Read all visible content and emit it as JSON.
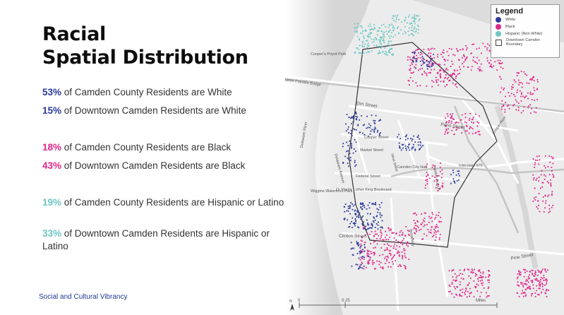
{
  "title_line1": "Racial",
  "title_line2": "Spatial Distribution",
  "colors": {
    "white": "#2b3a9b",
    "black": "#e0278a",
    "hispanic": "#6cc7c4"
  },
  "stats": [
    {
      "pct": "53%",
      "text": " of Camden County Residents are White",
      "color": "#2b3a9b"
    },
    {
      "pct": "15%",
      "text": " of Downtown Camden Residents are White",
      "color": "#2b3a9b"
    },
    {
      "pct": "18%",
      "text": " of Camden County Residents are Black",
      "color": "#e0278a"
    },
    {
      "pct": "43%",
      "text": " of Downtown Camden Residents are Black",
      "color": "#e0278a"
    },
    {
      "pct": "19%",
      "text": " of Camden County Residents are Hispanic or Latino",
      "color": "#6cc7c4"
    },
    {
      "pct": "33%",
      "text": " of Downtown Camden Residents are Hispanic or Latino",
      "color": "#6cc7c4"
    }
  ],
  "footer": "Social and Cultural Vibrancy",
  "legend": {
    "title": "Legend",
    "white": "White",
    "black": "Black",
    "hispanic": "Hispanic (Non-White)",
    "boundary": "Downtown Camden Boundary"
  },
  "map_labels": {
    "coopers_park": "Cooper's Poynt Park",
    "ben_franklin": "Benjamin Franklin Bridge",
    "elm": "Elm Street",
    "penn": "Penn Street",
    "cooper_st": "Cooper Street",
    "market": "Market Street",
    "delaware_ave": "Delaware Avenue",
    "delaware_river": "Delaware River",
    "federal": "Federal Street",
    "camden_city_hall": "Camden City Hall",
    "haddon": "Haddon Avenue",
    "interstate": "Interstate 676",
    "mlk": "Dr Martin Luther King Boulevard",
    "wiggins": "Wiggins Waterfront Park",
    "clinton": "Clinton Street",
    "broadway": "Broadway",
    "pine": "Pine Street",
    "cooper_river": "Cooper River",
    "west_st": "West Street",
    "scale_0": "0",
    "scale_1": "0.25",
    "scale_miles": "Miles",
    "north": "N"
  }
}
